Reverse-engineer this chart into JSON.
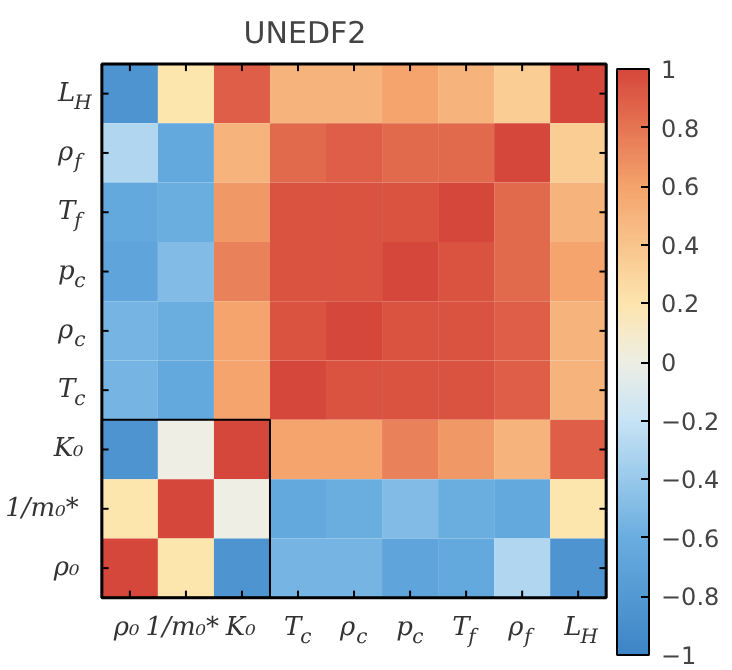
{
  "chart_data": {
    "type": "heatmap",
    "title": "UNEDF2",
    "categories": [
      "ρ₀",
      "1/m₀*",
      "K₀",
      "T$_{c}$",
      "ρ$_{c}$",
      "p$_{c}$",
      "T$_{f}$",
      "ρ$_{f}$",
      "L$_{H}$"
    ],
    "y_categories": [
      "L$_{H}$",
      "ρ$_{f}$",
      "T$_{f}$",
      "p$_{c}$",
      "ρ$_{c}$",
      "T$_{c}$",
      "K₀",
      "1/m₀*",
      "ρ₀"
    ],
    "cells": [
      [
        -0.85,
        0.2,
        0.9,
        0.5,
        0.5,
        0.6,
        0.5,
        0.35,
        1
      ],
      [
        -0.3,
        -0.65,
        0.5,
        0.85,
        0.9,
        0.85,
        0.85,
        1,
        0.35
      ],
      [
        -0.65,
        -0.6,
        0.65,
        0.95,
        0.95,
        0.95,
        1,
        0.85,
        0.5
      ],
      [
        -0.7,
        -0.5,
        0.75,
        0.95,
        0.95,
        1,
        0.95,
        0.85,
        0.6
      ],
      [
        -0.55,
        -0.6,
        0.6,
        0.95,
        1,
        0.95,
        0.95,
        0.9,
        0.5
      ],
      [
        -0.55,
        -0.65,
        0.6,
        1,
        0.95,
        0.95,
        0.95,
        0.9,
        0.5
      ],
      [
        -0.85,
        0.0,
        1,
        0.6,
        0.6,
        0.75,
        0.65,
        0.5,
        0.9
      ],
      [
        0.2,
        1,
        0.0,
        -0.65,
        -0.6,
        -0.5,
        -0.6,
        -0.65,
        0.2
      ],
      [
        1,
        0.2,
        -0.85,
        -0.55,
        -0.55,
        -0.7,
        -0.65,
        -0.3,
        -0.85
      ]
    ],
    "clim": [
      -1,
      1
    ],
    "cticks": [
      -1,
      -0.8,
      -0.6,
      -0.4,
      -0.2,
      0,
      0.2,
      0.4,
      0.6,
      0.8,
      1
    ]
  }
}
